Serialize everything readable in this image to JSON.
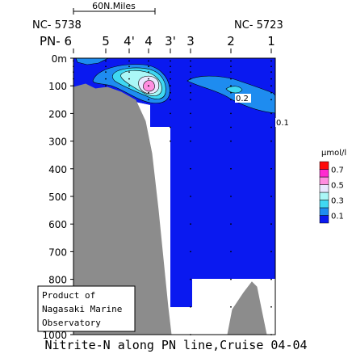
{
  "chart_data": {
    "type": "contour_section",
    "title": "Nitrite-N along PN line,Cruise 04-04",
    "unit_label": "μmol/l",
    "ylim": [
      0,
      1000
    ],
    "y_ticks": [
      0,
      100,
      200,
      300,
      400,
      500,
      600,
      700,
      800,
      900,
      1000
    ],
    "y_tick_labels": [
      "0m",
      "100",
      "200",
      "300",
      "400",
      "500",
      "600",
      "700",
      "800",
      "900",
      "1000"
    ],
    "stations": [
      {
        "label": "PN- 6",
        "top_label": "NC- 5738"
      },
      {
        "label": "5"
      },
      {
        "label": "4'"
      },
      {
        "label": "4"
      },
      {
        "label": "3'"
      },
      {
        "label": "3"
      },
      {
        "label": "2"
      },
      {
        "label": "1",
        "top_label": "NC- 5723"
      }
    ],
    "scale_bar_label": "60N.Miles",
    "colorbar": {
      "levels": [
        0.0,
        0.1,
        0.2,
        0.3,
        0.4,
        0.5,
        0.6,
        0.7
      ],
      "tick_labels": [
        "0.1",
        "0.3",
        "0.5",
        "0.7"
      ],
      "colors": [
        "#0a19f0",
        "#1e8cf0",
        "#3fd8f2",
        "#aaf7f7",
        "#e8e8ff",
        "#ff8ee0",
        "#ff2ad0",
        "#ff0a0a"
      ]
    },
    "contour_labels": [
      "0.2",
      "0.1"
    ],
    "peak_value_approx": 0.5,
    "peak_station": "4",
    "peak_depth_m": 110
  },
  "credit": {
    "lines": [
      "Product of",
      "Nagasaki Marine",
      "Observatory"
    ]
  }
}
